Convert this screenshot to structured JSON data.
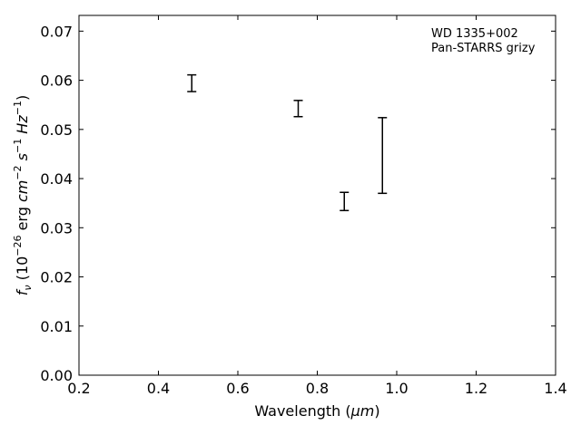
{
  "chart_data": {
    "type": "scatter",
    "xlabel": "Wavelength (",
    "xlabel_unit": "μm",
    "xlabel_close": ")",
    "ylabel": {
      "f": "f",
      "nu": "ν",
      "open": " (10",
      "exp26": "−26",
      "erg": " erg ",
      "cm": "cm",
      "exp_m2": "−2",
      "s": "s",
      "exp_m1": "−1",
      "hz": "Hz",
      "close": ")"
    },
    "annotations": [
      "WD 1335+002",
      "Pan-STARRS grizy"
    ],
    "xlim": [
      0.2,
      1.4
    ],
    "ylim": [
      0.0,
      0.0732
    ],
    "xticks": [
      0.2,
      0.4,
      0.6,
      0.8,
      1.0,
      1.2,
      1.4
    ],
    "xtick_labels": [
      "0.2",
      "0.4",
      "0.6",
      "0.8",
      "1.0",
      "1.2",
      "1.4"
    ],
    "yticks": [
      0.0,
      0.01,
      0.02,
      0.03,
      0.04,
      0.05,
      0.06,
      0.07
    ],
    "ytick_labels": [
      "0.00",
      "0.01",
      "0.02",
      "0.03",
      "0.04",
      "0.05",
      "0.06",
      "0.07"
    ],
    "grid": false,
    "tick_direction": "in",
    "series": [
      {
        "marker": "errorbar",
        "color": "#000000",
        "points": [
          {
            "x": 0.484,
            "y": 0.0594,
            "ylow": 0.0577,
            "yhigh": 0.0611
          },
          {
            "x": 0.752,
            "y": 0.0542,
            "ylow": 0.0526,
            "yhigh": 0.0559
          },
          {
            "x": 0.868,
            "y": 0.0353,
            "ylow": 0.0335,
            "yhigh": 0.0372
          },
          {
            "x": 0.964,
            "y": 0.0447,
            "ylow": 0.037,
            "yhigh": 0.0524
          }
        ]
      }
    ]
  }
}
